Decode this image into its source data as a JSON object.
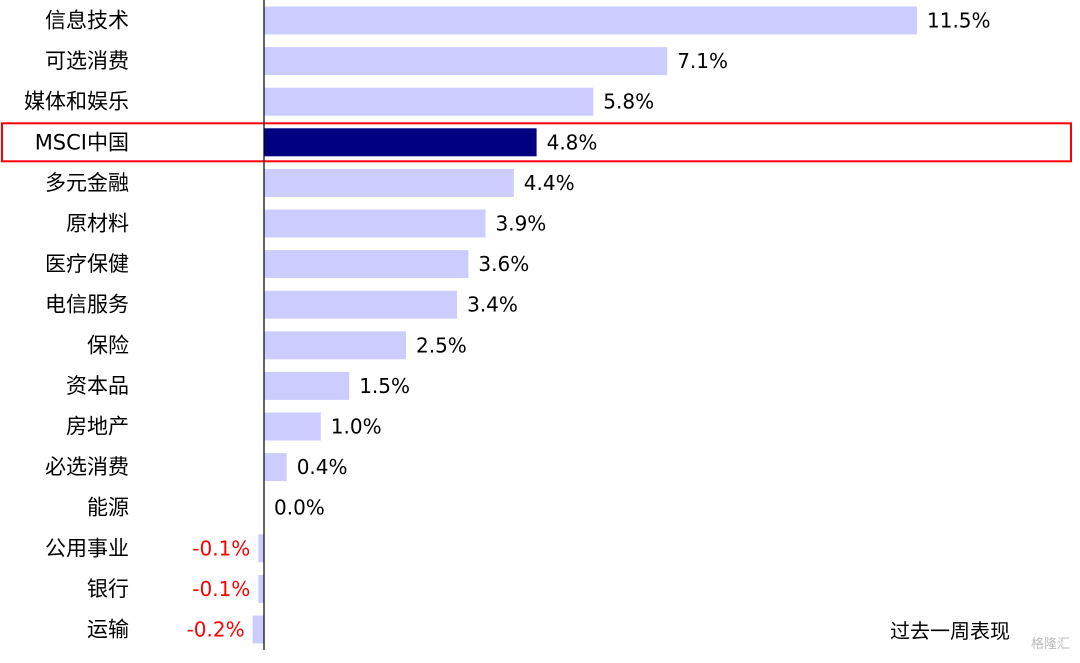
{
  "chart_data": {
    "type": "bar",
    "orientation": "horizontal",
    "categories": [
      "信息技术",
      "可选消费",
      "媒体和娱乐",
      "MSCI中国",
      "多元金融",
      "原材料",
      "医疗保健",
      "电信服务",
      "保险",
      "资本品",
      "房地产",
      "必选消费",
      "能源",
      "公用事业",
      "银行",
      "运输"
    ],
    "values": [
      11.5,
      7.1,
      5.8,
      4.8,
      4.4,
      3.9,
      3.6,
      3.4,
      2.5,
      1.5,
      1.0,
      0.4,
      0.0,
      -0.1,
      -0.1,
      -0.2
    ],
    "value_labels": [
      "11.5%",
      "7.1%",
      "5.8%",
      "4.8%",
      "4.4%",
      "3.9%",
      "3.6%",
      "3.4%",
      "2.5%",
      "1.5%",
      "1.0%",
      "0.4%",
      "0.0%",
      "-0.1%",
      "-0.1%",
      "-0.2%"
    ],
    "highlight_category": "MSCI中国",
    "caption": "过去一周表现",
    "grid": false,
    "legend": "none"
  },
  "watermark": "格隆汇",
  "colors": {
    "bar": "#ccccff",
    "highlight_bar": "#000080",
    "highlight_box": "#ff0000",
    "negative_label": "#ff0000",
    "axis": "#000000"
  }
}
